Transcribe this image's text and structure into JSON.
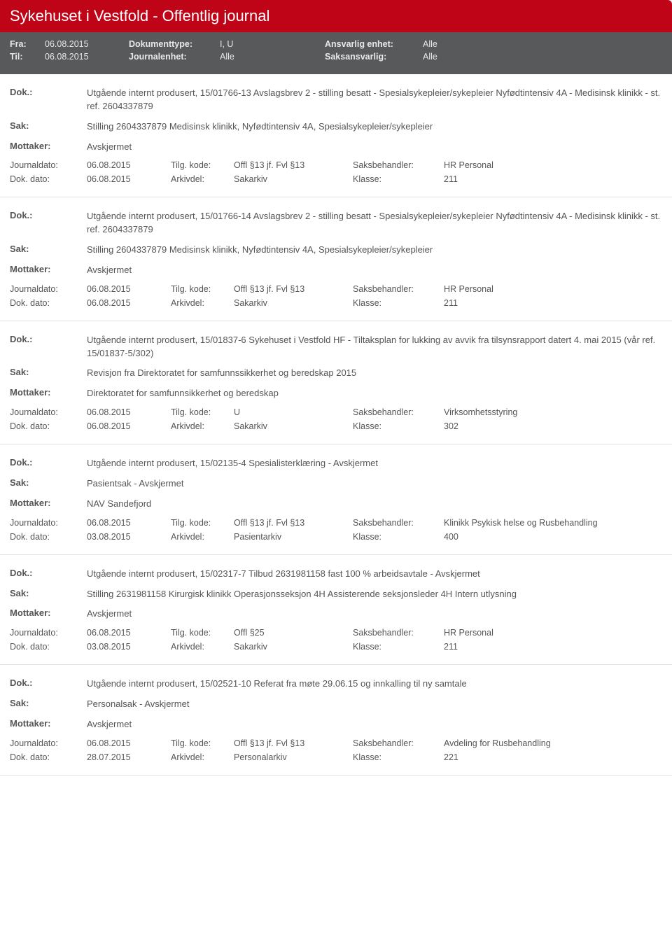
{
  "header": {
    "title": "Sykehuset i Vestfold - Offentlig journal"
  },
  "filter": {
    "fra_label": "Fra:",
    "fra": "06.08.2015",
    "til_label": "Til:",
    "til": "06.08.2015",
    "dokumenttype_label": "Dokumenttype:",
    "dokumenttype": "I, U",
    "journalenhet_label": "Journalenhet:",
    "journalenhet": "Alle",
    "ansv_label": "Ansvarlig enhet:",
    "ansv": "Alle",
    "sak_label": "Saksansvarlig:",
    "sak": "Alle"
  },
  "labels": {
    "dok": "Dok.:",
    "sak": "Sak:",
    "mottaker": "Mottaker:",
    "journaldato": "Journaldato:",
    "tilgkode": "Tilg. kode:",
    "saksbehandler": "Saksbehandler:",
    "dokdato": "Dok. dato:",
    "arkivdel": "Arkivdel:",
    "klasse": "Klasse:"
  },
  "entries": [
    {
      "dok": "Utgående internt produsert, 15/01766-13 Avslagsbrev 2 - stilling besatt - Spesialsykepleier/sykepleier Nyfødtintensiv 4A - Medisinsk klinikk - st. ref. 2604337879",
      "sak": "Stilling 2604337879 Medisinsk klinikk, Nyfødtintensiv 4A, Spesialsykepleier/sykepleier",
      "mottaker": "Avskjermet",
      "journaldato": "06.08.2015",
      "tilgkode": "Offl §13 jf. Fvl §13",
      "saksbehandler": "HR Personal",
      "dokdato": "06.08.2015",
      "arkivdel": "Sakarkiv",
      "klasse": "211"
    },
    {
      "dok": "Utgående internt produsert, 15/01766-14 Avslagsbrev 2 - stilling besatt - Spesialsykepleier/sykepleier Nyfødtintensiv 4A - Medisinsk klinikk - st. ref. 2604337879",
      "sak": "Stilling 2604337879 Medisinsk klinikk, Nyfødtintensiv 4A, Spesialsykepleier/sykepleier",
      "mottaker": "Avskjermet",
      "journaldato": "06.08.2015",
      "tilgkode": "Offl §13 jf. Fvl §13",
      "saksbehandler": "HR Personal",
      "dokdato": "06.08.2015",
      "arkivdel": "Sakarkiv",
      "klasse": "211"
    },
    {
      "dok": "Utgående internt produsert, 15/01837-6 Sykehuset i Vestfold HF - Tiltaksplan for lukking av avvik fra tilsynsrapport datert 4. mai 2015 (vår ref. 15/01837-5/302)",
      "sak": "Revisjon fra Direktoratet for samfunnssikkerhet og beredskap 2015",
      "mottaker": "Direktoratet for samfunnsikkerhet og beredskap",
      "journaldato": "06.08.2015",
      "tilgkode": "U",
      "saksbehandler": "Virksomhetsstyring",
      "dokdato": "06.08.2015",
      "arkivdel": "Sakarkiv",
      "klasse": "302"
    },
    {
      "dok": "Utgående internt produsert, 15/02135-4 Spesialisterklæring - Avskjermet",
      "sak": "Pasientsak - Avskjermet",
      "mottaker": "NAV Sandefjord",
      "journaldato": "06.08.2015",
      "tilgkode": "Offl §13 jf. Fvl §13",
      "saksbehandler": "Klinikk Psykisk helse og Rusbehandling",
      "dokdato": "03.08.2015",
      "arkivdel": "Pasientarkiv",
      "klasse": "400"
    },
    {
      "dok": "Utgående internt produsert, 15/02317-7 Tilbud 2631981158 fast 100 % arbeidsavtale - Avskjermet",
      "sak": "Stilling 2631981158 Kirurgisk klinikk Operasjonsseksjon 4H Assisterende seksjonsleder 4H Intern utlysning",
      "mottaker": "Avskjermet",
      "journaldato": "06.08.2015",
      "tilgkode": "Offl §25",
      "saksbehandler": "HR Personal",
      "dokdato": "03.08.2015",
      "arkivdel": "Sakarkiv",
      "klasse": "211"
    },
    {
      "dok": "Utgående internt produsert, 15/02521-10 Referat fra møte 29.06.15 og innkalling til ny samtale",
      "sak": "Personalsak - Avskjermet",
      "mottaker": "Avskjermet",
      "journaldato": "06.08.2015",
      "tilgkode": "Offl §13 jf. Fvl §13",
      "saksbehandler": "Avdeling for Rusbehandling",
      "dokdato": "28.07.2015",
      "arkivdel": "Personalarkiv",
      "klasse": "221"
    }
  ]
}
